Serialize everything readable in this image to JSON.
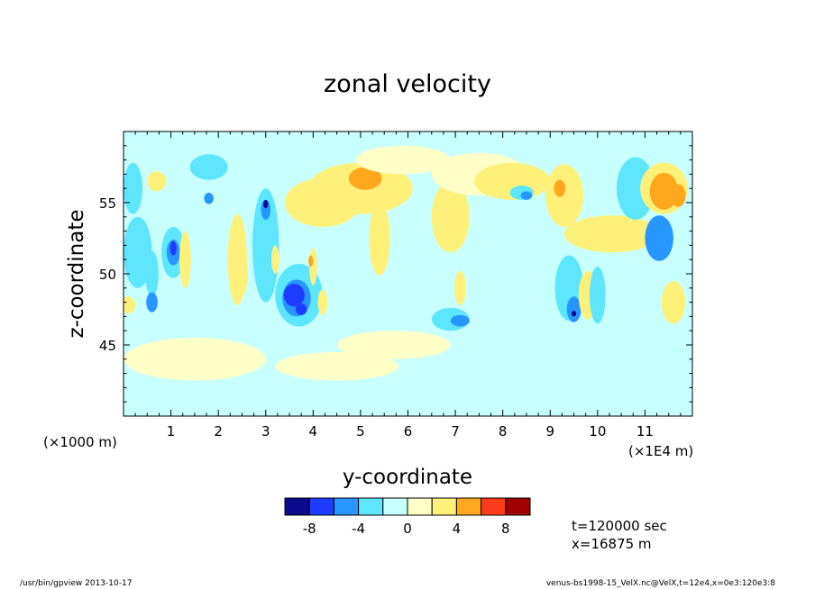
{
  "chart_data": {
    "type": "heatmap",
    "title": "zonal velocity",
    "xlabel": "y-coordinate",
    "ylabel": "z-coordinate",
    "x_scale_note_left": "(×1000 m)",
    "x_scale_note_right": "(×1E4 m)",
    "xlim": [
      0,
      12
    ],
    "ylim": [
      40,
      60
    ],
    "x_ticks": [
      1,
      2,
      3,
      4,
      5,
      6,
      7,
      8,
      9,
      10,
      11
    ],
    "x_tick_labels": [
      "1",
      "2",
      "3",
      "4",
      "5",
      "6",
      "7",
      "8",
      "9",
      "10",
      "11"
    ],
    "y_ticks": [
      45,
      50,
      55
    ],
    "y_tick_labels": [
      "45",
      "50",
      "55"
    ],
    "colorbar": {
      "levels": [
        -10,
        -8,
        -6,
        -4,
        -2,
        0,
        2,
        4,
        6,
        8,
        10
      ],
      "colors": [
        "#0a0a8c",
        "#1e3cff",
        "#2896ff",
        "#5fe6ff",
        "#c8ffff",
        "#ffffc8",
        "#fff07a",
        "#ffa81e",
        "#ff3c1e",
        "#a00000"
      ],
      "tick_labels": [
        "-8",
        "-4",
        "0",
        "4",
        "8"
      ],
      "tick_values": [
        -8,
        -4,
        0,
        4,
        8
      ]
    },
    "blobs": [
      {
        "x": 0.3,
        "y": 51.5,
        "rx": 0.3,
        "ry": 2.5,
        "level": -2
      },
      {
        "x": 1.05,
        "y": 51.5,
        "rx": 0.25,
        "ry": 1.8,
        "level": -2
      },
      {
        "x": 1.05,
        "y": 51.5,
        "rx": 0.14,
        "ry": 0.9,
        "level": -4
      },
      {
        "x": 1.05,
        "y": 51.8,
        "rx": 0.07,
        "ry": 0.5,
        "level": -6
      },
      {
        "x": 0.6,
        "y": 50.0,
        "rx": 0.14,
        "ry": 1.6,
        "level": -2
      },
      {
        "x": 0.6,
        "y": 48.0,
        "rx": 0.12,
        "ry": 0.7,
        "level": -4
      },
      {
        "x": 0.1,
        "y": 47.8,
        "rx": 0.15,
        "ry": 0.6,
        "level": 2
      },
      {
        "x": 1.3,
        "y": 51.0,
        "rx": 0.12,
        "ry": 2.0,
        "level": 2
      },
      {
        "x": 0.2,
        "y": 56.0,
        "rx": 0.2,
        "ry": 1.8,
        "level": -2
      },
      {
        "x": 0.7,
        "y": 56.5,
        "rx": 0.2,
        "ry": 0.7,
        "level": 2
      },
      {
        "x": 1.8,
        "y": 57.5,
        "rx": 0.4,
        "ry": 0.9,
        "level": -2
      },
      {
        "x": 1.8,
        "y": 55.3,
        "rx": 0.1,
        "ry": 0.4,
        "level": -4
      },
      {
        "x": 2.4,
        "y": 51.0,
        "rx": 0.2,
        "ry": 3.2,
        "level": 2
      },
      {
        "x": 2.45,
        "y": 50.0,
        "rx": 0.17,
        "ry": 1.7,
        "level": 2
      },
      {
        "x": 3.0,
        "y": 52.0,
        "rx": 0.28,
        "ry": 4.0,
        "level": -2
      },
      {
        "x": 3.0,
        "y": 54.5,
        "rx": 0.1,
        "ry": 0.7,
        "level": -4
      },
      {
        "x": 3.0,
        "y": 54.9,
        "rx": 0.05,
        "ry": 0.3,
        "level": -8
      },
      {
        "x": 3.2,
        "y": 51.0,
        "rx": 0.08,
        "ry": 1.0,
        "level": 2
      },
      {
        "x": 3.7,
        "y": 48.5,
        "rx": 0.5,
        "ry": 2.2,
        "level": -2
      },
      {
        "x": 3.65,
        "y": 48.3,
        "rx": 0.3,
        "ry": 1.3,
        "level": -4
      },
      {
        "x": 3.6,
        "y": 48.5,
        "rx": 0.22,
        "ry": 0.8,
        "level": -6
      },
      {
        "x": 3.75,
        "y": 47.5,
        "rx": 0.12,
        "ry": 0.4,
        "level": -6
      },
      {
        "x": 4.0,
        "y": 50.5,
        "rx": 0.08,
        "ry": 1.3,
        "level": 2
      },
      {
        "x": 3.95,
        "y": 50.9,
        "rx": 0.05,
        "ry": 0.4,
        "level": 4
      },
      {
        "x": 4.2,
        "y": 48.0,
        "rx": 0.1,
        "ry": 0.9,
        "level": 2
      },
      {
        "x": 4.2,
        "y": 55.0,
        "rx": 0.8,
        "ry": 1.7,
        "level": 2
      },
      {
        "x": 5.0,
        "y": 56.0,
        "rx": 1.1,
        "ry": 1.8,
        "level": 2
      },
      {
        "x": 5.0,
        "y": 56.5,
        "rx": 0.55,
        "ry": 1.1,
        "level": 2
      },
      {
        "x": 5.1,
        "y": 56.7,
        "rx": 0.35,
        "ry": 0.8,
        "level": 4
      },
      {
        "x": 5.4,
        "y": 52.5,
        "rx": 0.22,
        "ry": 2.6,
        "level": 2
      },
      {
        "x": 5.9,
        "y": 58.0,
        "rx": 1.0,
        "ry": 1.0,
        "level": 0
      },
      {
        "x": 6.9,
        "y": 54.0,
        "rx": 0.4,
        "ry": 2.5,
        "level": 2
      },
      {
        "x": 7.1,
        "y": 49.0,
        "rx": 0.12,
        "ry": 1.2,
        "level": 2
      },
      {
        "x": 6.9,
        "y": 46.8,
        "rx": 0.4,
        "ry": 0.8,
        "level": -2
      },
      {
        "x": 7.1,
        "y": 46.7,
        "rx": 0.2,
        "ry": 0.4,
        "level": -4
      },
      {
        "x": 7.5,
        "y": 57.0,
        "rx": 1.0,
        "ry": 1.5,
        "level": 0
      },
      {
        "x": 8.2,
        "y": 56.5,
        "rx": 0.8,
        "ry": 1.3,
        "level": 2
      },
      {
        "x": 8.4,
        "y": 55.7,
        "rx": 0.25,
        "ry": 0.5,
        "level": -2
      },
      {
        "x": 8.5,
        "y": 55.5,
        "rx": 0.12,
        "ry": 0.3,
        "level": -4
      },
      {
        "x": 9.3,
        "y": 55.5,
        "rx": 0.4,
        "ry": 2.2,
        "level": 2
      },
      {
        "x": 9.2,
        "y": 56.0,
        "rx": 0.12,
        "ry": 0.6,
        "level": 4
      },
      {
        "x": 9.4,
        "y": 49.0,
        "rx": 0.3,
        "ry": 2.3,
        "level": -2
      },
      {
        "x": 9.5,
        "y": 47.5,
        "rx": 0.15,
        "ry": 0.9,
        "level": -4
      },
      {
        "x": 9.5,
        "y": 47.2,
        "rx": 0.05,
        "ry": 0.2,
        "level": -8
      },
      {
        "x": 9.8,
        "y": 48.5,
        "rx": 0.2,
        "ry": 1.7,
        "level": 2
      },
      {
        "x": 10.0,
        "y": 48.5,
        "rx": 0.17,
        "ry": 2.0,
        "level": -2
      },
      {
        "x": 10.3,
        "y": 52.8,
        "rx": 1.0,
        "ry": 1.3,
        "level": 2
      },
      {
        "x": 10.8,
        "y": 56.0,
        "rx": 0.4,
        "ry": 2.2,
        "level": -2
      },
      {
        "x": 11.3,
        "y": 52.5,
        "rx": 0.3,
        "ry": 1.6,
        "level": -4
      },
      {
        "x": 11.4,
        "y": 56.0,
        "rx": 0.5,
        "ry": 1.8,
        "level": 2
      },
      {
        "x": 11.4,
        "y": 55.8,
        "rx": 0.3,
        "ry": 1.3,
        "level": 4
      },
      {
        "x": 11.7,
        "y": 55.5,
        "rx": 0.16,
        "ry": 0.8,
        "level": 4
      },
      {
        "x": 11.6,
        "y": 48.0,
        "rx": 0.25,
        "ry": 1.5,
        "level": 2
      },
      {
        "x": 5.7,
        "y": 45.0,
        "rx": 1.2,
        "ry": 1.0,
        "level": 0
      },
      {
        "x": 4.5,
        "y": 43.5,
        "rx": 1.3,
        "ry": 1.0,
        "level": 0
      },
      {
        "x": 1.5,
        "y": 44.0,
        "rx": 1.5,
        "ry": 1.5,
        "level": 0
      }
    ]
  },
  "info": {
    "time": "t=120000 sec",
    "position": "x=16875 m"
  },
  "footer": {
    "left": "/usr/bin/gpview  2013-10-17",
    "right": "venus-bs1998-15_VelX.nc@VelX,t=12e4,x=0e3:120e3:8"
  }
}
